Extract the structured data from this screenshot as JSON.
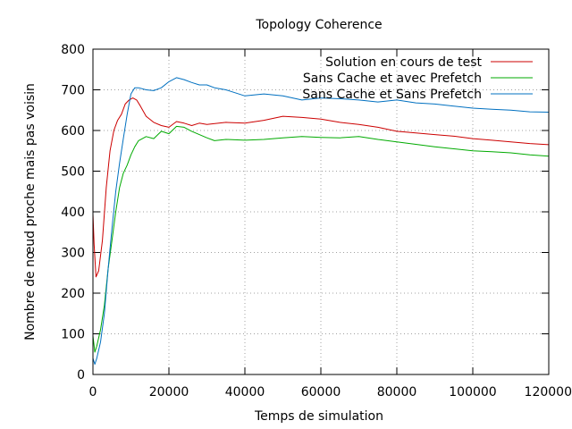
{
  "chart_data": {
    "type": "line",
    "title": "Topology Coherence",
    "xlabel": "Temps de simulation",
    "ylabel": "Nombre de nœud proche mais pas voisin",
    "xlim": [
      0,
      120000
    ],
    "ylim": [
      0,
      800
    ],
    "xticks": [
      0,
      20000,
      40000,
      60000,
      80000,
      100000,
      120000
    ],
    "xtick_labels": [
      "0",
      "20000",
      "40000",
      "60000",
      "80000",
      "100000",
      "120000"
    ],
    "yticks": [
      0,
      100,
      200,
      300,
      400,
      500,
      600,
      700,
      800
    ],
    "ytick_labels": [
      "0",
      "100",
      "200",
      "300",
      "400",
      "500",
      "600",
      "700",
      "800"
    ],
    "grid": true,
    "legend_position": "top-right",
    "series": [
      {
        "name": "Solution en cours de test",
        "color": "#cc0000",
        "x": [
          0,
          300,
          800,
          1500,
          2500,
          3500,
          4500,
          5500,
          6500,
          7500,
          8500,
          9500,
          10500,
          11500,
          12500,
          14000,
          16000,
          18000,
          20000,
          22000,
          24000,
          26000,
          28000,
          30000,
          35000,
          40000,
          45000,
          50000,
          55000,
          60000,
          65000,
          70000,
          75000,
          80000,
          85000,
          90000,
          95000,
          100000,
          105000,
          110000,
          115000,
          120000
        ],
        "values": [
          395,
          320,
          240,
          255,
          330,
          460,
          550,
          600,
          625,
          640,
          665,
          675,
          680,
          675,
          660,
          635,
          620,
          612,
          608,
          622,
          618,
          612,
          618,
          615,
          620,
          618,
          625,
          635,
          632,
          628,
          620,
          615,
          608,
          598,
          594,
          590,
          586,
          580,
          576,
          572,
          568,
          565
        ]
      },
      {
        "name": "Sans Cache et avec Prefetch",
        "color": "#00aa00",
        "x": [
          0,
          500,
          1000,
          2000,
          3000,
          4000,
          5000,
          6000,
          7000,
          8000,
          9000,
          10000,
          11000,
          12000,
          14000,
          16000,
          18000,
          20000,
          22000,
          24000,
          26000,
          28000,
          30000,
          32000,
          35000,
          40000,
          45000,
          50000,
          55000,
          60000,
          65000,
          70000,
          75000,
          80000,
          85000,
          90000,
          95000,
          100000,
          105000,
          110000,
          115000,
          120000
        ],
        "values": [
          95,
          55,
          70,
          110,
          170,
          260,
          330,
          400,
          460,
          495,
          515,
          540,
          560,
          575,
          585,
          580,
          598,
          592,
          610,
          608,
          598,
          590,
          582,
          575,
          578,
          576,
          578,
          582,
          585,
          583,
          582,
          585,
          578,
          572,
          566,
          560,
          555,
          550,
          548,
          545,
          540,
          537
        ]
      },
      {
        "name": "Sans Cache et Sans Prefetch",
        "color": "#0070c0",
        "x": [
          0,
          500,
          1000,
          2000,
          3000,
          4000,
          5000,
          6000,
          7000,
          8000,
          9000,
          10000,
          11000,
          12000,
          14000,
          16000,
          18000,
          20000,
          22000,
          24000,
          26000,
          28000,
          30000,
          32000,
          35000,
          40000,
          45000,
          50000,
          55000,
          60000,
          65000,
          70000,
          75000,
          80000,
          85000,
          90000,
          95000,
          100000,
          105000,
          110000,
          115000,
          120000
        ],
        "values": [
          40,
          25,
          40,
          80,
          150,
          260,
          360,
          450,
          520,
          580,
          640,
          690,
          705,
          705,
          700,
          698,
          705,
          720,
          730,
          725,
          718,
          712,
          712,
          705,
          700,
          685,
          690,
          685,
          675,
          680,
          678,
          675,
          670,
          675,
          668,
          665,
          660,
          655,
          652,
          650,
          646,
          645
        ]
      }
    ]
  }
}
